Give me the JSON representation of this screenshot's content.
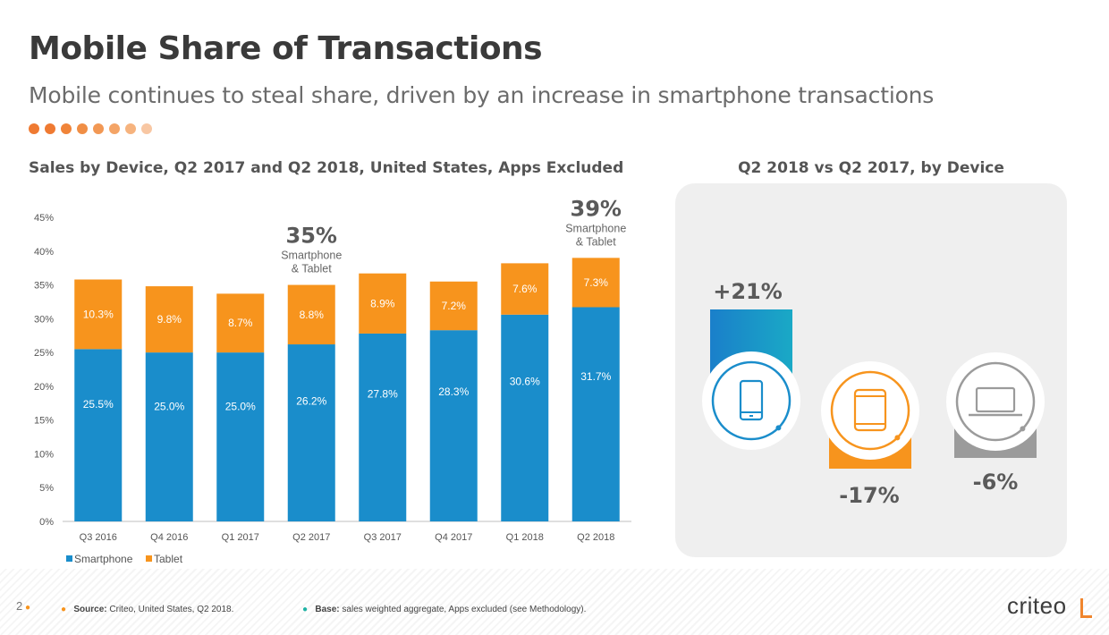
{
  "header": {
    "title": "Mobile Share of Transactions",
    "subtitle": "Mobile continues to steal share, driven by an increase in smartphone transactions",
    "dot_colors": [
      "#ef7a32",
      "#ef7a32",
      "#f08439",
      "#f08e45",
      "#f29854",
      "#f4a466",
      "#f6b37e",
      "#f8c7a3"
    ]
  },
  "chart_title": "Sales by Device, Q2 2017 and Q2 2018, United States, Apps Excluded",
  "right_title": "Q2 2018 vs Q2 2017, by Device",
  "chart_data": [
    {
      "type": "bar",
      "stacked": true,
      "title": "Sales by Device, Q2 2017 and Q2 2018, United States, Apps Excluded",
      "categories": [
        "Q3 2016",
        "Q4 2016",
        "Q1 2017",
        "Q2 2017",
        "Q3 2017",
        "Q4 2017",
        "Q1 2018",
        "Q2 2018"
      ],
      "series": [
        {
          "name": "Smartphone",
          "color": "#1a8dcb",
          "values": [
            25.5,
            25.0,
            25.0,
            26.2,
            27.8,
            28.3,
            30.6,
            31.7
          ],
          "labels": [
            "25.5%",
            "25.0%",
            "25.0%",
            "26.2%",
            "27.8%",
            "28.3%",
            "30.6%",
            "31.7%"
          ]
        },
        {
          "name": "Tablet",
          "color": "#f7941d",
          "values": [
            10.3,
            9.8,
            8.7,
            8.8,
            8.9,
            7.2,
            7.6,
            7.3
          ],
          "labels": [
            "10.3%",
            "9.8%",
            "8.7%",
            "8.8%",
            "8.9%",
            "7.2%",
            "7.6%",
            "7.3%"
          ]
        }
      ],
      "ylim": [
        0,
        45
      ],
      "yticks": [
        "0%",
        "5%",
        "10%",
        "15%",
        "20%",
        "25%",
        "30%",
        "35%",
        "40%",
        "45%"
      ],
      "grid": false,
      "legend_position": "bottom-left",
      "annotations": [
        {
          "category": "Q2 2017",
          "big": "35%",
          "line1": "Smartphone",
          "line2": "& Tablet"
        },
        {
          "category": "Q2 2018",
          "big": "39%",
          "line1": "Smartphone",
          "line2": "& Tablet"
        }
      ]
    },
    {
      "type": "bar",
      "title": "Q2 2018 vs Q2 2017, by Device",
      "categories": [
        "Smartphone",
        "Tablet",
        "Desktop"
      ],
      "values": [
        21,
        -17,
        -6
      ],
      "labels": [
        "+21%",
        "-17%",
        "-6%"
      ],
      "colors": [
        "#1a8dcb",
        "#f7941d",
        "#9b9b9b"
      ],
      "icons": [
        "smartphone-icon",
        "tablet-icon",
        "laptop-icon"
      ]
    }
  ],
  "footer": {
    "page_number": "2",
    "source_label": "Source:",
    "source_text": "Criteo, United States, Q2 2018.",
    "base_label": "Base:",
    "base_text": "sales weighted aggregate, Apps excluded (see Methodology).",
    "source_dot_color": "#f7941d",
    "base_dot_color": "#1fb3a5"
  },
  "logo": {
    "text": "criteo"
  }
}
